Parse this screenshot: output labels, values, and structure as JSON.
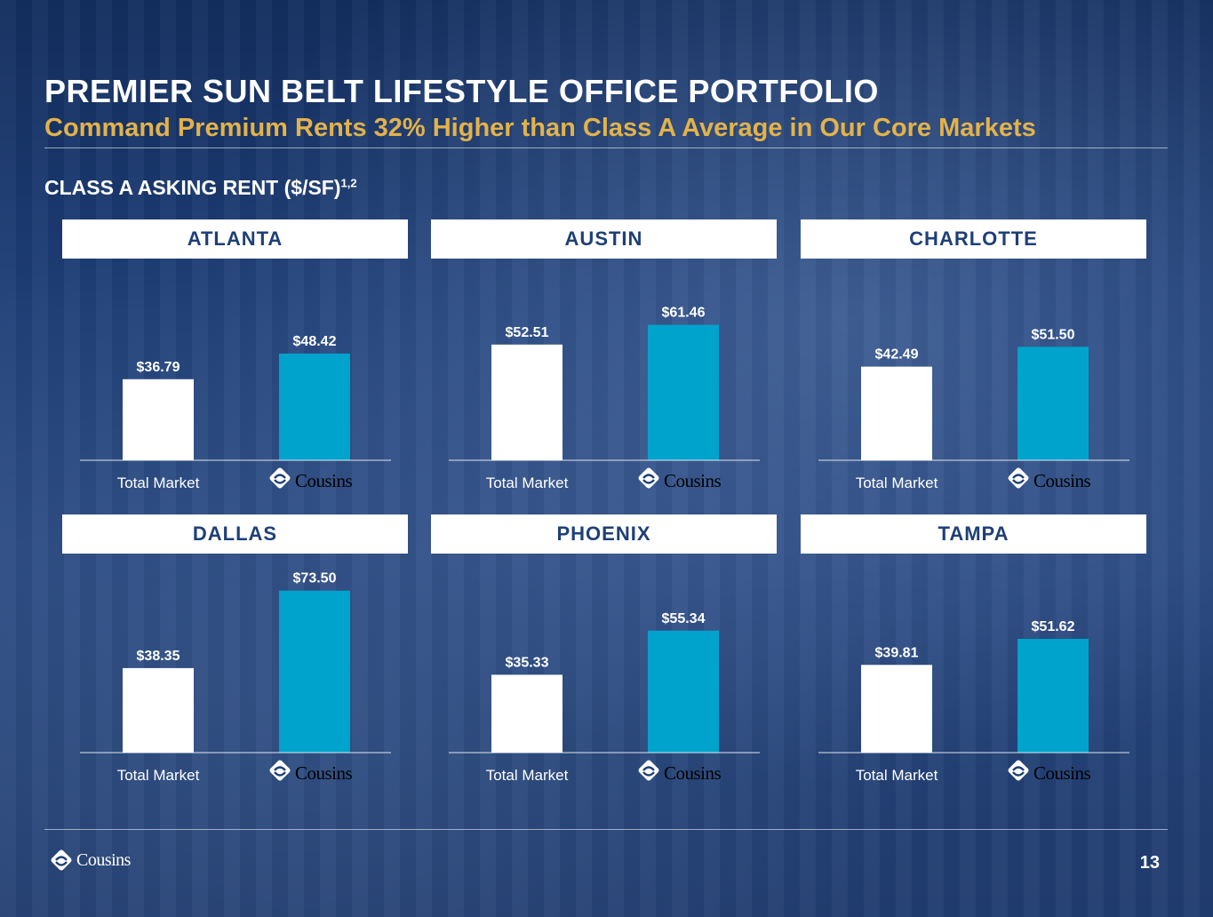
{
  "title": "PREMIER SUN BELT LIFESTYLE OFFICE PORTFOLIO",
  "subtitle": "Command Premium Rents 32% Higher than Class A Average in Our Core Markets",
  "section_label": "CLASS A ASKING RENT ($/SF)",
  "section_label_sup": "1,2",
  "brand_name": "Cousins",
  "page_number": "13",
  "colors": {
    "background": "#1e3f78",
    "total_market": "#ffffff",
    "cousins": "#00a3cc",
    "accent": "#e3b24a"
  },
  "chart_data": [
    {
      "type": "bar",
      "title": "ATLANTA",
      "categories": [
        "Total Market",
        "Cousins"
      ],
      "values": [
        36.79,
        48.42
      ],
      "labels": [
        "$36.79",
        "$48.42"
      ]
    },
    {
      "type": "bar",
      "title": "AUSTIN",
      "categories": [
        "Total Market",
        "Cousins"
      ],
      "values": [
        52.51,
        61.46
      ],
      "labels": [
        "$52.51",
        "$61.46"
      ]
    },
    {
      "type": "bar",
      "title": "CHARLOTTE",
      "categories": [
        "Total Market",
        "Cousins"
      ],
      "values": [
        42.49,
        51.5
      ],
      "labels": [
        "$42.49",
        "$51.50"
      ]
    },
    {
      "type": "bar",
      "title": "DALLAS",
      "categories": [
        "Total Market",
        "Cousins"
      ],
      "values": [
        38.35,
        73.5
      ],
      "labels": [
        "$38.35",
        "$73.50"
      ]
    },
    {
      "type": "bar",
      "title": "PHOENIX",
      "categories": [
        "Total Market",
        "Cousins"
      ],
      "values": [
        35.33,
        55.34
      ],
      "labels": [
        "$35.33",
        "$55.34"
      ]
    },
    {
      "type": "bar",
      "title": "TAMPA",
      "categories": [
        "Total Market",
        "Cousins"
      ],
      "values": [
        39.81,
        51.62
      ],
      "labels": [
        "$39.81",
        "$51.62"
      ]
    }
  ]
}
